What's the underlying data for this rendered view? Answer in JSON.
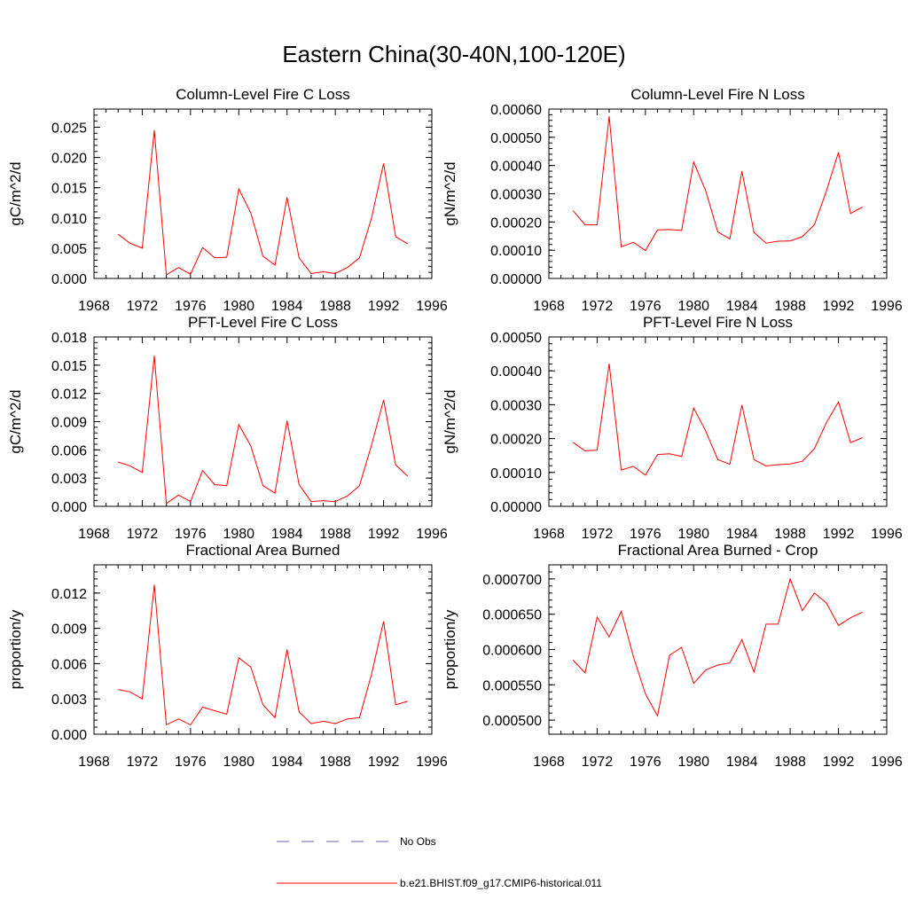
{
  "title": "Eastern China(30-40N,100-120E)",
  "legend": {
    "entries": [
      {
        "name": "No Obs",
        "color": "#6666aa",
        "dash": true
      },
      {
        "name": "b.e21.BHIST.f09_g17.CMIP6-historical.011",
        "color": "#ff0000",
        "dash": false
      }
    ]
  },
  "chart_data": [
    {
      "type": "line",
      "title": "Column-Level Fire C Loss",
      "ylabel": "gC/m^2/d",
      "xlim": [
        1968,
        1996
      ],
      "ylim": [
        0,
        0.028
      ],
      "xticks": [
        1968,
        1972,
        1976,
        1980,
        1984,
        1988,
        1992,
        1996
      ],
      "yticks": [
        0,
        0.005,
        0.01,
        0.015,
        0.02,
        0.025
      ],
      "ytick_labels": [
        "0.000",
        "0.005",
        "0.010",
        "0.015",
        "0.020",
        "0.025"
      ],
      "x": [
        1970,
        1971,
        1972,
        1973,
        1974,
        1975,
        1976,
        1977,
        1978,
        1979,
        1980,
        1981,
        1982,
        1983,
        1984,
        1985,
        1986,
        1987,
        1988,
        1989,
        1990,
        1991,
        1992,
        1993,
        1994
      ],
      "series": [
        {
          "name": "b.e21.BHIST.f09_g17.CMIP6-historical.011",
          "color": "#ff0000",
          "values": [
            0.0073,
            0.0058,
            0.005,
            0.0245,
            0.0006,
            0.0018,
            0.0007,
            0.0051,
            0.0034,
            0.0035,
            0.0148,
            0.0108,
            0.0037,
            0.0022,
            0.0134,
            0.0034,
            0.0008,
            0.0011,
            0.0008,
            0.0018,
            0.0034,
            0.01,
            0.019,
            0.0069,
            0.0057
          ]
        }
      ]
    },
    {
      "type": "line",
      "title": "Column-Level Fire N Loss",
      "ylabel": "gN/m^2/d",
      "xlim": [
        1968,
        1996
      ],
      "ylim": [
        0,
        0.0006
      ],
      "xticks": [
        1968,
        1972,
        1976,
        1980,
        1984,
        1988,
        1992,
        1996
      ],
      "yticks": [
        0,
        0.0001,
        0.0002,
        0.0003,
        0.0004,
        0.0005,
        0.0006
      ],
      "ytick_labels": [
        "0.00000",
        "0.00010",
        "0.00020",
        "0.00030",
        "0.00040",
        "0.00050",
        "0.00060"
      ],
      "x": [
        1970,
        1971,
        1972,
        1973,
        1974,
        1975,
        1976,
        1977,
        1978,
        1979,
        1980,
        1981,
        1982,
        1983,
        1984,
        1985,
        1986,
        1987,
        1988,
        1989,
        1990,
        1991,
        1992,
        1993,
        1994
      ],
      "series": [
        {
          "name": "b.e21.BHIST.f09_g17.CMIP6-historical.011",
          "color": "#ff0000",
          "values": [
            0.00024,
            0.00019,
            0.00019,
            0.000575,
            0.000112,
            0.000128,
            9.9e-05,
            0.000172,
            0.000173,
            0.00017,
            0.000412,
            0.00031,
            0.000165,
            0.00014,
            0.00038,
            0.000163,
            0.000125,
            0.000132,
            0.000133,
            0.000148,
            0.00019,
            0.00031,
            0.000447,
            0.00023,
            0.000253
          ]
        }
      ]
    },
    {
      "type": "line",
      "title": "PFT-Level Fire C Loss",
      "ylabel": "gC/m^2/d",
      "xlim": [
        1968,
        1996
      ],
      "ylim": [
        0,
        0.018
      ],
      "xticks": [
        1968,
        1972,
        1976,
        1980,
        1984,
        1988,
        1992,
        1996
      ],
      "yticks": [
        0,
        0.003,
        0.006,
        0.009,
        0.012,
        0.015,
        0.018
      ],
      "ytick_labels": [
        "0.000",
        "0.003",
        "0.006",
        "0.009",
        "0.012",
        "0.015",
        "0.018"
      ],
      "x": [
        1970,
        1971,
        1972,
        1973,
        1974,
        1975,
        1976,
        1977,
        1978,
        1979,
        1980,
        1981,
        1982,
        1983,
        1984,
        1985,
        1986,
        1987,
        1988,
        1989,
        1990,
        1991,
        1992,
        1993,
        1994
      ],
      "series": [
        {
          "name": "b.e21.BHIST.f09_g17.CMIP6-historical.011",
          "color": "#ff0000",
          "values": [
            0.0047,
            0.0043,
            0.0036,
            0.016,
            0.0003,
            0.0012,
            0.0005,
            0.0038,
            0.0023,
            0.0022,
            0.0087,
            0.0064,
            0.0022,
            0.0014,
            0.0091,
            0.0023,
            0.0005,
            0.0006,
            0.0005,
            0.0011,
            0.0022,
            0.0065,
            0.0113,
            0.0044,
            0.0032
          ]
        }
      ]
    },
    {
      "type": "line",
      "title": "PFT-Level Fire N Loss",
      "ylabel": "gN/m^2/d",
      "xlim": [
        1968,
        1996
      ],
      "ylim": [
        0,
        0.0005
      ],
      "xticks": [
        1968,
        1972,
        1976,
        1980,
        1984,
        1988,
        1992,
        1996
      ],
      "yticks": [
        0,
        0.0001,
        0.0002,
        0.0003,
        0.0004,
        0.0005
      ],
      "ytick_labels": [
        "0.00000",
        "0.00010",
        "0.00020",
        "0.00030",
        "0.00040",
        "0.00050"
      ],
      "x": [
        1970,
        1971,
        1972,
        1973,
        1974,
        1975,
        1976,
        1977,
        1978,
        1979,
        1980,
        1981,
        1982,
        1983,
        1984,
        1985,
        1986,
        1987,
        1988,
        1989,
        1990,
        1991,
        1992,
        1993,
        1994
      ],
      "series": [
        {
          "name": "b.e21.BHIST.f09_g17.CMIP6-historical.011",
          "color": "#ff0000",
          "values": [
            0.000189,
            0.000164,
            0.000166,
            0.000421,
            0.000107,
            0.000118,
            9.2e-05,
            0.000153,
            0.000155,
            0.000147,
            0.00029,
            0.000222,
            0.000138,
            0.000124,
            0.000299,
            0.000138,
            0.000119,
            0.000123,
            0.000125,
            0.000133,
            0.00017,
            0.000247,
            0.000308,
            0.000188,
            0.000203
          ]
        }
      ]
    },
    {
      "type": "line",
      "title": "Fractional Area Burned",
      "ylabel": "proportion/y",
      "xlim": [
        1968,
        1996
      ],
      "ylim": [
        0,
        0.0144
      ],
      "xticks": [
        1968,
        1972,
        1976,
        1980,
        1984,
        1988,
        1992,
        1996
      ],
      "yticks": [
        0,
        0.003,
        0.006,
        0.009,
        0.012
      ],
      "ytick_labels": [
        "0.000",
        "0.003",
        "0.006",
        "0.009",
        "0.012"
      ],
      "x": [
        1970,
        1971,
        1972,
        1973,
        1974,
        1975,
        1976,
        1977,
        1978,
        1979,
        1980,
        1981,
        1982,
        1983,
        1984,
        1985,
        1986,
        1987,
        1988,
        1989,
        1990,
        1991,
        1992,
        1993,
        1994
      ],
      "series": [
        {
          "name": "b.e21.BHIST.f09_g17.CMIP6-historical.011",
          "color": "#ff0000",
          "values": [
            0.0038,
            0.0036,
            0.003,
            0.0127,
            0.0008,
            0.0013,
            0.0008,
            0.0023,
            0.002,
            0.0017,
            0.0065,
            0.0057,
            0.0025,
            0.0014,
            0.0072,
            0.0019,
            0.0009,
            0.0011,
            0.0009,
            0.0013,
            0.0014,
            0.0051,
            0.0096,
            0.0025,
            0.0028
          ]
        }
      ]
    },
    {
      "type": "line",
      "title": "Fractional Area Burned - Crop",
      "ylabel": "proportion/y",
      "xlim": [
        1968,
        1996
      ],
      "ylim": [
        0.00048,
        0.00072
      ],
      "xticks": [
        1968,
        1972,
        1976,
        1980,
        1984,
        1988,
        1992,
        1996
      ],
      "yticks": [
        0.0005,
        0.00055,
        0.0006,
        0.00065,
        0.0007
      ],
      "ytick_labels": [
        "0.000500",
        "0.000550",
        "0.000600",
        "0.000650",
        "0.000700"
      ],
      "x": [
        1970,
        1971,
        1972,
        1973,
        1974,
        1975,
        1976,
        1977,
        1978,
        1979,
        1980,
        1981,
        1982,
        1983,
        1984,
        1985,
        1986,
        1987,
        1988,
        1989,
        1990,
        1991,
        1992,
        1993,
        1994
      ],
      "series": [
        {
          "name": "b.e21.BHIST.f09_g17.CMIP6-historical.011",
          "color": "#ff0000",
          "values": [
            0.000585,
            0.000567,
            0.000646,
            0.000618,
            0.000654,
            0.00059,
            0.000537,
            0.000506,
            0.000592,
            0.000603,
            0.000552,
            0.000571,
            0.000578,
            0.000581,
            0.000614,
            0.000568,
            0.000636,
            0.000636,
            0.0007,
            0.000655,
            0.00068,
            0.000666,
            0.000634,
            0.000645,
            0.000653
          ]
        }
      ]
    }
  ]
}
